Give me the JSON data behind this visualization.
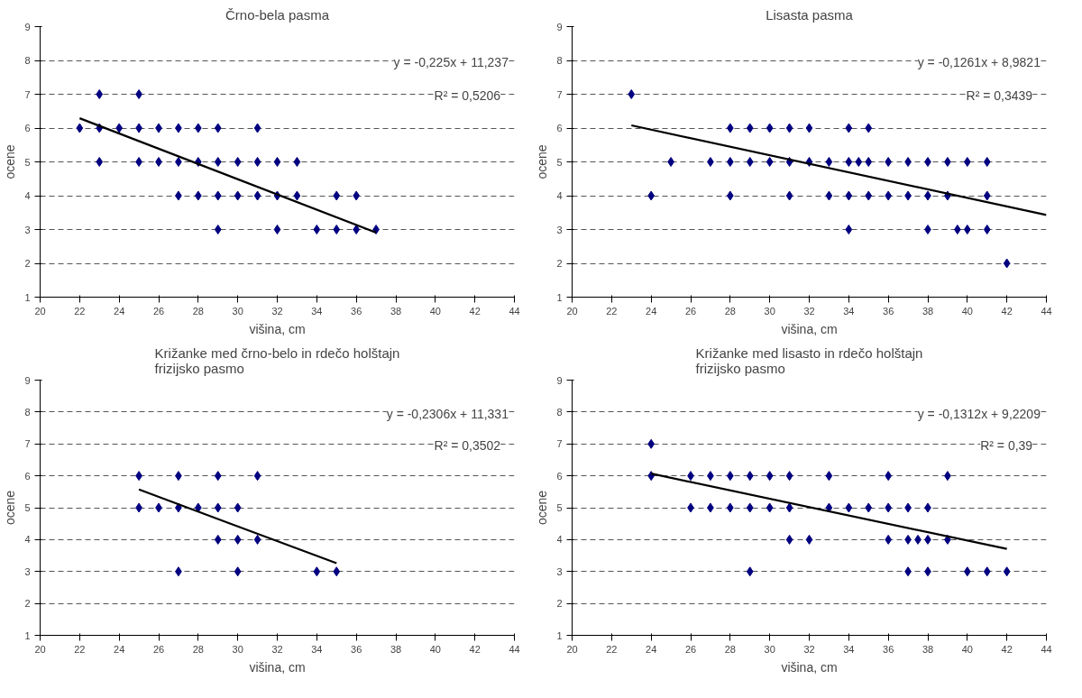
{
  "chart_data": [
    {
      "type": "scatter",
      "title": "Črno-bela pasma",
      "xlabel": "višina, cm",
      "ylabel": "ocene",
      "xlim": [
        20,
        44
      ],
      "ylim": [
        1,
        9
      ],
      "xticks": [
        20,
        22,
        24,
        26,
        28,
        30,
        32,
        34,
        36,
        38,
        40,
        42,
        44
      ],
      "yticks": [
        1,
        2,
        3,
        4,
        5,
        6,
        7,
        8,
        9
      ],
      "grid": "y",
      "annotations": [
        "y = -0,225x + 11,237",
        "R² = 0,5206"
      ],
      "series": [
        {
          "marker": "diamond",
          "color": "#000080",
          "x": [
            23,
            25,
            22,
            23,
            24,
            25,
            26,
            27,
            28,
            29,
            31,
            23,
            25,
            26,
            27,
            28,
            29,
            30,
            31,
            32,
            33,
            27,
            28,
            29,
            30,
            31,
            32,
            33,
            35,
            36,
            29,
            32,
            34,
            35,
            36,
            37
          ],
          "values": [
            7,
            7,
            6,
            6,
            6,
            6,
            6,
            6,
            6,
            6,
            6,
            5,
            5,
            5,
            5,
            5,
            5,
            5,
            5,
            5,
            5,
            4,
            4,
            4,
            4,
            4,
            4,
            4,
            4,
            4,
            3,
            3,
            3,
            3,
            3,
            3
          ]
        },
        {
          "type": "line",
          "color": "#000000",
          "x": [
            22,
            37
          ],
          "values": [
            6.29,
            2.91
          ]
        }
      ]
    },
    {
      "type": "scatter",
      "title": "Lisasta pasma",
      "xlabel": "višina, cm",
      "ylabel": "ocene",
      "xlim": [
        20,
        44
      ],
      "ylim": [
        1,
        9
      ],
      "xticks": [
        20,
        22,
        24,
        26,
        28,
        30,
        32,
        34,
        36,
        38,
        40,
        42,
        44
      ],
      "yticks": [
        1,
        2,
        3,
        4,
        5,
        6,
        7,
        8,
        9
      ],
      "grid": "y",
      "annotations": [
        "y = -0,1261x + 8,9821",
        "R² = 0,3439"
      ],
      "series": [
        {
          "marker": "diamond",
          "color": "#000080",
          "x": [
            23,
            28,
            29,
            30,
            31,
            32,
            34,
            35,
            25,
            27,
            28,
            29,
            30,
            31,
            32,
            33,
            34,
            34.5,
            35,
            36,
            37,
            38,
            39,
            40,
            41,
            24,
            28,
            31,
            33,
            34,
            35,
            36,
            37,
            38,
            39,
            41,
            34,
            38,
            39.5,
            40,
            41,
            42
          ],
          "values": [
            7,
            6,
            6,
            6,
            6,
            6,
            6,
            6,
            5,
            5,
            5,
            5,
            5,
            5,
            5,
            5,
            5,
            5,
            5,
            5,
            5,
            5,
            5,
            5,
            5,
            4,
            4,
            4,
            4,
            4,
            4,
            4,
            4,
            4,
            4,
            4,
            3,
            3,
            3,
            3,
            3,
            2
          ]
        },
        {
          "type": "line",
          "color": "#000000",
          "x": [
            23,
            44
          ],
          "values": [
            6.08,
            3.43
          ]
        }
      ]
    },
    {
      "type": "scatter",
      "title": "Križanke med črno-belo in rdečo holštajn frizijsko pasmo",
      "xlabel": "višina, cm",
      "ylabel": "ocene",
      "xlim": [
        20,
        44
      ],
      "ylim": [
        1,
        9
      ],
      "xticks": [
        20,
        22,
        24,
        26,
        28,
        30,
        32,
        34,
        36,
        38,
        40,
        42,
        44
      ],
      "yticks": [
        1,
        2,
        3,
        4,
        5,
        6,
        7,
        8,
        9
      ],
      "grid": "y",
      "annotations": [
        "y = -0,2306x + 11,331",
        "R² = 0,3502"
      ],
      "series": [
        {
          "marker": "diamond",
          "color": "#000080",
          "x": [
            25,
            27,
            29,
            31,
            25,
            26,
            27,
            28,
            29,
            30,
            29,
            30,
            31,
            27,
            30,
            34,
            35
          ],
          "values": [
            6,
            6,
            6,
            6,
            5,
            5,
            5,
            5,
            5,
            5,
            4,
            4,
            4,
            3,
            3,
            3,
            3
          ]
        },
        {
          "type": "line",
          "color": "#000000",
          "x": [
            25,
            35
          ],
          "values": [
            5.57,
            3.26
          ]
        }
      ]
    },
    {
      "type": "scatter",
      "title": "Križanke med lisasto in rdečo holštajn frizijsko pasmo",
      "xlabel": "višina, cm",
      "ylabel": "ocene",
      "xlim": [
        20,
        44
      ],
      "ylim": [
        1,
        9
      ],
      "xticks": [
        20,
        22,
        24,
        26,
        28,
        30,
        32,
        34,
        36,
        38,
        40,
        42,
        44
      ],
      "yticks": [
        1,
        2,
        3,
        4,
        5,
        6,
        7,
        8,
        9
      ],
      "grid": "y",
      "annotations": [
        "y = -0,1312x + 9,2209",
        "R² = 0,39"
      ],
      "series": [
        {
          "marker": "diamond",
          "color": "#000080",
          "x": [
            24,
            24,
            26,
            27,
            28,
            29,
            30,
            31,
            33,
            36,
            39,
            26,
            27,
            28,
            29,
            30,
            31,
            33,
            34,
            35,
            36,
            37,
            38,
            31,
            32,
            36,
            37,
            37.5,
            38,
            39,
            29,
            37,
            38,
            40,
            41,
            42
          ],
          "values": [
            7,
            6,
            6,
            6,
            6,
            6,
            6,
            6,
            6,
            6,
            6,
            5,
            5,
            5,
            5,
            5,
            5,
            5,
            5,
            5,
            5,
            5,
            5,
            4,
            4,
            4,
            4,
            4,
            4,
            4,
            3,
            3,
            3,
            3,
            3,
            3
          ]
        },
        {
          "type": "line",
          "color": "#000000",
          "x": [
            24,
            42
          ],
          "values": [
            6.07,
            3.71
          ]
        }
      ]
    }
  ]
}
